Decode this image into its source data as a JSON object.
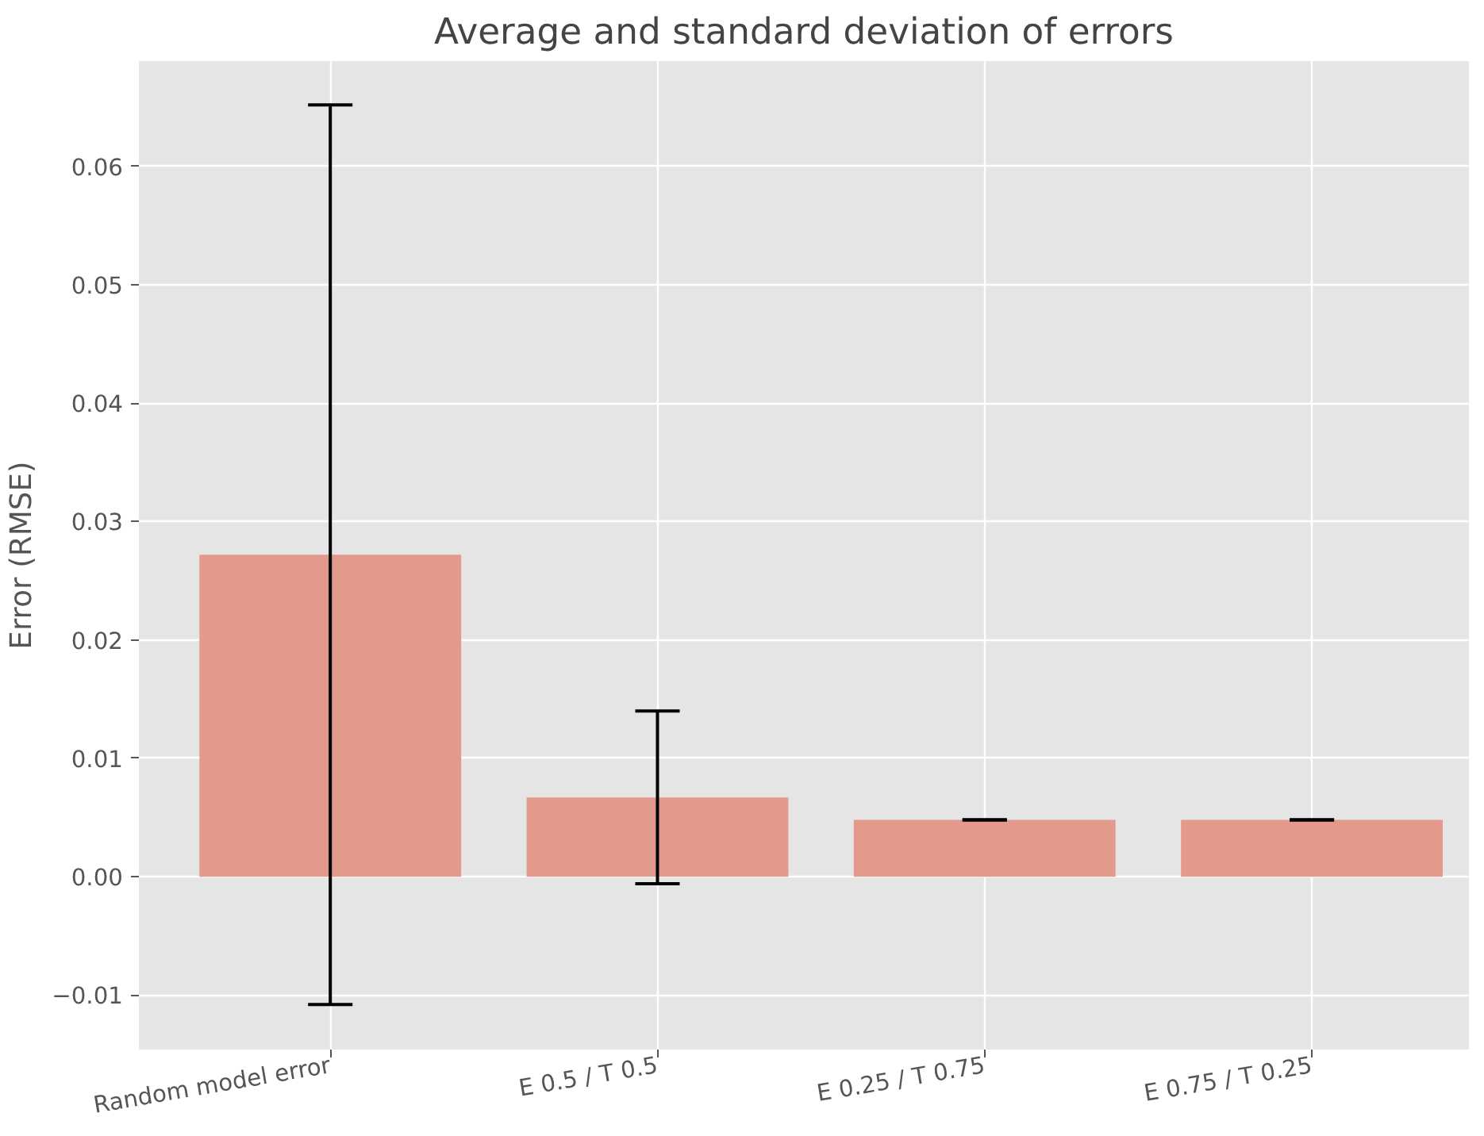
{
  "chart_data": {
    "type": "bar",
    "title": "Average and standard deviation of errors",
    "ylabel": "Error (RMSE)",
    "categories": [
      "Random model error",
      "E 0.5 / T 0.5",
      "E 0.25 / T 0.75",
      "E 0.75 / T 0.25"
    ],
    "values": [
      0.0272,
      0.0067,
      0.0048,
      0.0048
    ],
    "errors": [
      0.038,
      0.0073,
      0,
      0
    ],
    "color": "#e3998c",
    "ylim": [
      -0.0146,
      0.0689
    ],
    "yticks": [
      {
        "value": -0.01,
        "label": "−0.01"
      },
      {
        "value": 0,
        "label": "0.00"
      },
      {
        "value": 0.01,
        "label": "0.01"
      },
      {
        "value": 0.02,
        "label": "0.02"
      },
      {
        "value": 0.03,
        "label": "0.03"
      },
      {
        "value": 0.04,
        "label": "0.04"
      },
      {
        "value": 0.05,
        "label": "0.05"
      },
      {
        "value": 0.06,
        "label": "0.06"
      }
    ],
    "grid": true
  }
}
